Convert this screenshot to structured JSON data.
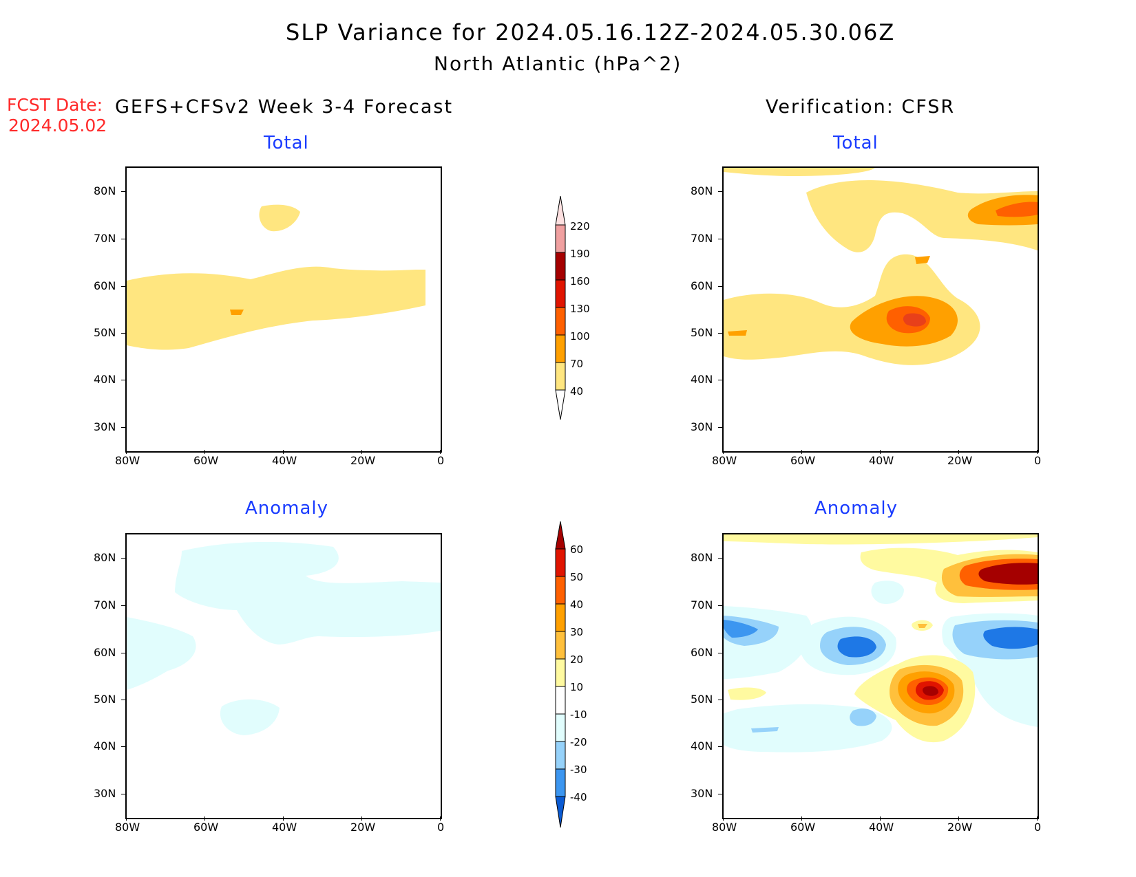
{
  "header": {
    "title": "SLP Variance for 2024.05.16.12Z-2024.05.30.06Z",
    "subtitle": "North Atlantic (hPa^2)",
    "fcst_label": "FCST Date:",
    "fcst_date": "2024.05.02",
    "left_title": "GEFS+CFSv2 Week 3-4 Forecast",
    "right_title": "Verification: CFSR"
  },
  "panels": {
    "fcst_total": {
      "label": "Total"
    },
    "verif_total": {
      "label": "Total"
    },
    "fcst_anom": {
      "label": "Anomaly"
    },
    "verif_anom": {
      "label": "Anomaly"
    }
  },
  "axes": {
    "lat_labels": [
      "80N",
      "70N",
      "60N",
      "50N",
      "40N",
      "30N"
    ],
    "lon_labels": [
      "80W",
      "60W",
      "40W",
      "20W",
      "0"
    ]
  },
  "colorbars": {
    "total": {
      "levels": [
        "40",
        "70",
        "100",
        "130",
        "160",
        "190",
        "220"
      ],
      "colors": [
        "#ffe680",
        "#ffa000",
        "#ff6000",
        "#e01400",
        "#a50000",
        "#f0a0a0",
        "#fde0e0"
      ]
    },
    "anomaly": {
      "levels": [
        "-40",
        "-30",
        "-20",
        "-10",
        "10",
        "20",
        "30",
        "40",
        "50",
        "60"
      ],
      "colors": [
        "#0a5ad2",
        "#1e78e6",
        "#3c96f0",
        "#96d2fa",
        "#e1fdfd",
        "#ffffff",
        "#fffaa0",
        "#ffc03c",
        "#ffa000",
        "#ff6000",
        "#e01400",
        "#a50000"
      ]
    }
  },
  "colors": {
    "total_low": "#ffe680",
    "total_mid": "#ffa000",
    "total_high": "#ff6000",
    "anom_pale_yellow": "#fffaa0",
    "anom_yellow_orange": "#ffc03c",
    "anom_orange": "#ffa000",
    "anom_dark_orange": "#ff6000",
    "anom_red": "#e01400",
    "anom_dark_red": "#a50000",
    "anom_pale_blue": "#e1fdfd",
    "anom_light_blue": "#96d2fa",
    "anom_blue": "#3c96f0",
    "anom_dark_blue": "#1e78e6"
  }
}
